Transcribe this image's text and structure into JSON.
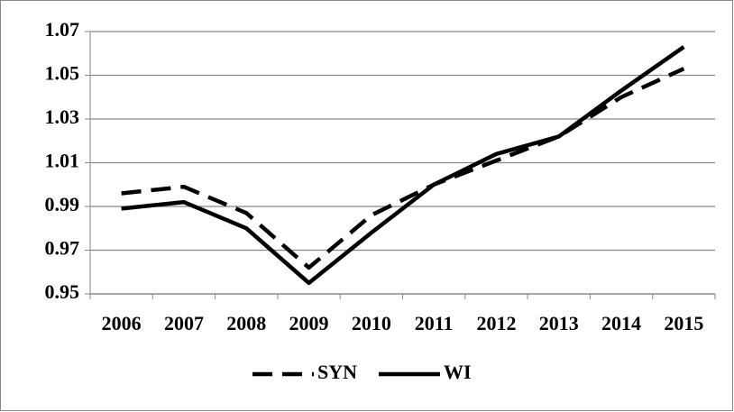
{
  "chart_data": {
    "type": "line",
    "categories": [
      "2006",
      "2007",
      "2008",
      "2009",
      "2010",
      "2011",
      "2012",
      "2013",
      "2014",
      "2015"
    ],
    "series": [
      {
        "name": "SYN",
        "color": "#000000",
        "dash": true,
        "values": [
          0.996,
          0.999,
          0.987,
          0.962,
          0.986,
          1.0,
          1.011,
          1.022,
          1.04,
          1.053
        ]
      },
      {
        "name": "WI",
        "color": "#000000",
        "dash": false,
        "values": [
          0.989,
          0.992,
          0.98,
          0.955,
          0.978,
          1.0,
          1.014,
          1.022,
          1.043,
          1.063
        ]
      }
    ],
    "ylim": [
      0.95,
      1.07
    ],
    "yticks": [
      0.95,
      0.97,
      0.99,
      1.01,
      1.03,
      1.05,
      1.07
    ],
    "grid": true,
    "legend": "bottom"
  }
}
